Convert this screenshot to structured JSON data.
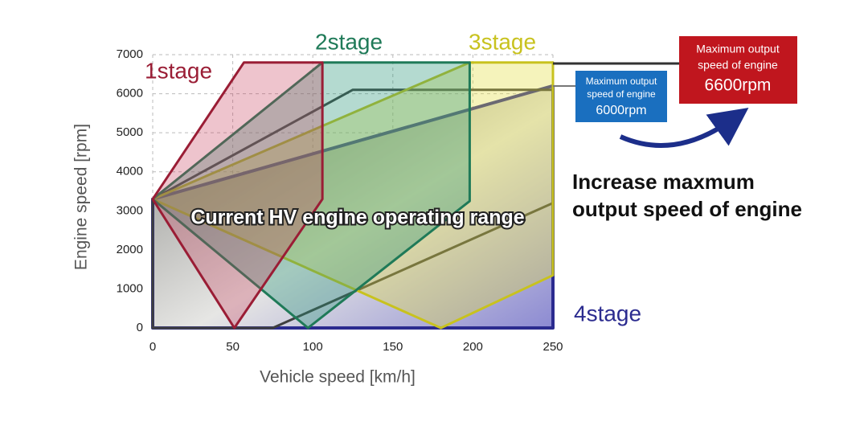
{
  "chart_data": {
    "type": "polygon",
    "x_label": "Vehicle speed [km/h]",
    "y_label": "Engine speed [rpm]",
    "xlim": [
      0,
      250
    ],
    "xticks": [
      0,
      50,
      100,
      150,
      200,
      250
    ],
    "ylim": [
      0,
      7000
    ],
    "yticks": [
      0,
      1000,
      2000,
      3000,
      4000,
      5000,
      6000,
      7000
    ],
    "grid": true,
    "series": [
      {
        "name": "4stage",
        "color": "#2b2b8f",
        "x": [
          0,
          250,
          250,
          0
        ],
        "values": [
          3300,
          6200,
          0,
          0
        ]
      },
      {
        "name": "Current HV engine operating range",
        "color": "#3f3f3f",
        "x": [
          0,
          125,
          250,
          250,
          75,
          0
        ],
        "values": [
          3300,
          6100,
          6100,
          3200,
          0,
          0
        ]
      },
      {
        "name": "3stage",
        "color": "#c8c21e",
        "x": [
          0,
          198,
          250,
          250,
          180,
          0
        ],
        "values": [
          3300,
          6800,
          6800,
          1350,
          0,
          3300
        ]
      },
      {
        "name": "2stage",
        "color": "#1f7a58",
        "x": [
          0,
          106,
          198,
          198,
          97,
          0
        ],
        "values": [
          3300,
          6800,
          6800,
          3250,
          0,
          3300
        ]
      },
      {
        "name": "1stage",
        "color": "#9a1d35",
        "x": [
          0,
          57,
          106,
          106,
          51,
          0
        ],
        "values": [
          3300,
          6800,
          6800,
          3300,
          0,
          3300
        ]
      }
    ],
    "callouts": [
      {
        "lines": [
          "Maximum output",
          "speed of engine",
          "6000rpm"
        ],
        "color": "#1a6fbf"
      },
      {
        "lines": [
          "Maximum output",
          "speed of engine",
          "6600rpm"
        ],
        "color": "#c0161e"
      }
    ],
    "annotation": [
      "Increase maxmum",
      "output speed of engine"
    ]
  }
}
